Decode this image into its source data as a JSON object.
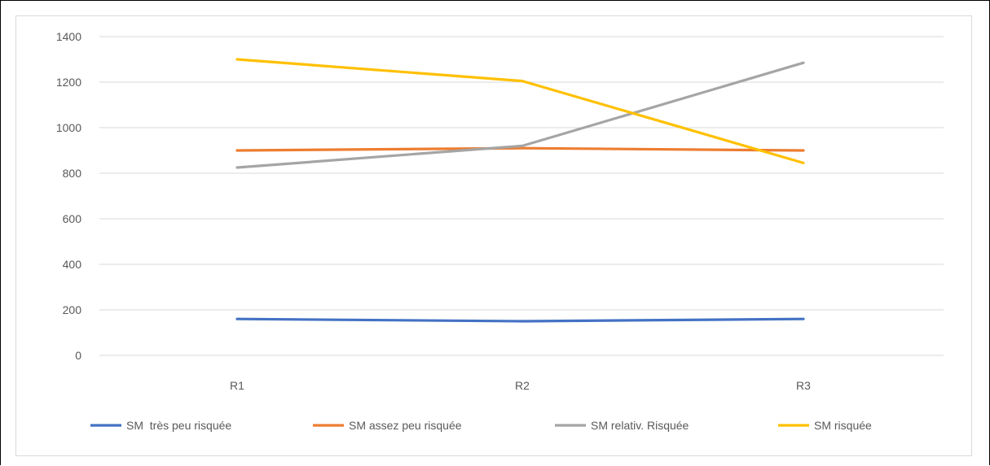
{
  "chart_data": {
    "type": "line",
    "categories": [
      "R1",
      "R2",
      "R3"
    ],
    "ylim": [
      0,
      1400
    ],
    "yticks": [
      0,
      200,
      400,
      600,
      800,
      1000,
      1200,
      1400
    ],
    "grid": true,
    "legend_position": "bottom",
    "series": [
      {
        "name": "SM  très peu risquée",
        "values": [
          160,
          150,
          160
        ],
        "color": "#4472c4"
      },
      {
        "name": "SM assez peu risquée",
        "values": [
          900,
          910,
          900
        ],
        "color": "#ed7d31"
      },
      {
        "name": "SM relativ. Risquée",
        "values": [
          825,
          920,
          1285
        ],
        "color": "#a5a5a5"
      },
      {
        "name": "SM risquée",
        "values": [
          1300,
          1205,
          845
        ],
        "color": "#ffc000"
      }
    ]
  }
}
